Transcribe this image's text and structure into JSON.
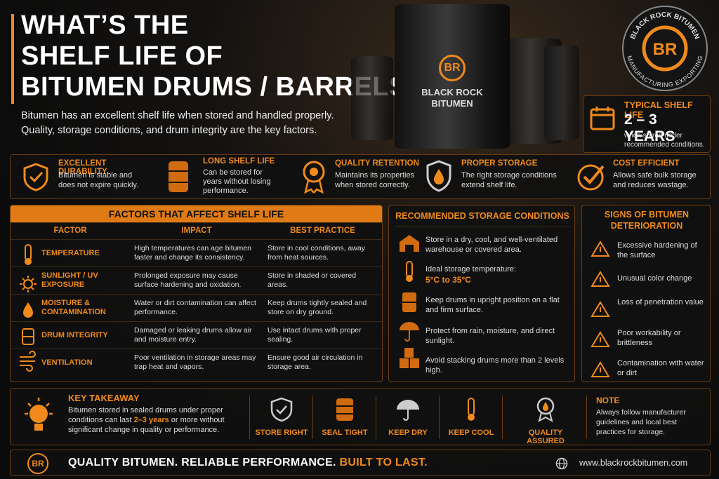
{
  "header": {
    "title_line1": "WHAT’S THE",
    "title_line2": "SHELF LIFE OF",
    "title_line3": "BITUMEN DRUMS / BARRELS?",
    "intro_line1": "Bitumen has an excellent shelf life when stored and handled properly.",
    "intro_line2": "Quality, storage conditions, and drum integrity are the key factors."
  },
  "barrel_label": {
    "mark": "BR",
    "line1": "BLACK ROCK",
    "line2": "BITUMEN"
  },
  "logo": {
    "mark": "BR",
    "top": "BLACK ROCK BITUMEN",
    "bottom": "MANUFACTURING EXPORTING"
  },
  "shelf_life": {
    "title": "TYPICAL SHELF LIFE",
    "value": "2 – 3 YEARS",
    "note_line1": "when stored under",
    "note_line2": "recommended conditions."
  },
  "features": [
    {
      "title": "EXCELLENT DURABILITY",
      "line1": "Bitumen is stable and",
      "line2": "does not expire quickly."
    },
    {
      "title": "LONG SHELF LIFE",
      "line1": "Can be stored for",
      "line2": "years without losing",
      "line3": "performance."
    },
    {
      "title": "QUALITY RETENTION",
      "line1": "Maintains its properties",
      "line2": "when stored correctly."
    },
    {
      "title": "PROPER STORAGE",
      "line1": "The right storage conditions",
      "line2": "extend shelf life."
    },
    {
      "title": "COST EFFICIENT",
      "line1": "Allows safe bulk storage",
      "line2": "and reduces wastage."
    }
  ],
  "factors": {
    "title": "FACTORS THAT AFFECT SHELF LIFE",
    "headers": [
      "FACTOR",
      "IMPACT",
      "BEST PRACTICE"
    ],
    "rows": [
      [
        "TEMPERATURE",
        "High temperatures can age bitumen faster and change its consistency.",
        "Store in cool conditions, away from heat sources."
      ],
      [
        "SUNLIGHT / UV EXPOSURE",
        "Prolonged exposure may cause surface hardening and oxidation.",
        "Store in shaded or covered areas."
      ],
      [
        "MOISTURE & CONTAMINATION",
        "Water or dirt contamination can affect performance.",
        "Keep drums tightly sealed and store on dry ground."
      ],
      [
        "DRUM INTEGRITY",
        "Damaged or leaking drums allow air and moisture entry.",
        "Use intact drums with proper sealing."
      ],
      [
        "VENTILATION",
        "Poor ventilation in storage areas may trap heat and vapors.",
        "Ensure good air circulation in storage area."
      ]
    ]
  },
  "storage": {
    "title": "RECOMMENDED STORAGE CONDITIONS",
    "items": [
      "Store in a dry, cool, and well-ventilated warehouse or covered area.",
      "Ideal storage temperature:",
      "Keep drums in upright position on a flat and firm surface.",
      "Protect from rain, moisture, and direct sunlight.",
      "Avoid stacking drums more than 2 levels high."
    ],
    "temperature": "5°C to 35°C"
  },
  "signs": {
    "title_line1": "SIGNS OF BITUMEN",
    "title_line2": "DETERIORATION",
    "items": [
      "Excessive hardening of the surface",
      "Unusual color change",
      "Loss of penetration value",
      "Poor workability or brittleness",
      "Contamination with water or dirt"
    ]
  },
  "takeaway": {
    "title": "KEY TAKEAWAY",
    "text_before": "Bitumen stored in sealed drums under proper conditions can last",
    "highlight": "2–3 years",
    "text_after": "or more without significant change in quality or performance."
  },
  "badges": [
    "STORE RIGHT",
    "SEAL TIGHT",
    "KEEP DRY",
    "KEEP COOL",
    "QUALITY ASSURED"
  ],
  "note": {
    "title": "NOTE",
    "text": "Always follow manufacturer guidelines and local best practices for storage."
  },
  "footer": {
    "mark": "BR",
    "tagline": "QUALITY BITUMEN. RELIABLE PERFORMANCE.",
    "highlight": "BUILT TO LAST.",
    "url": "www.blackrockbitumen.com"
  }
}
